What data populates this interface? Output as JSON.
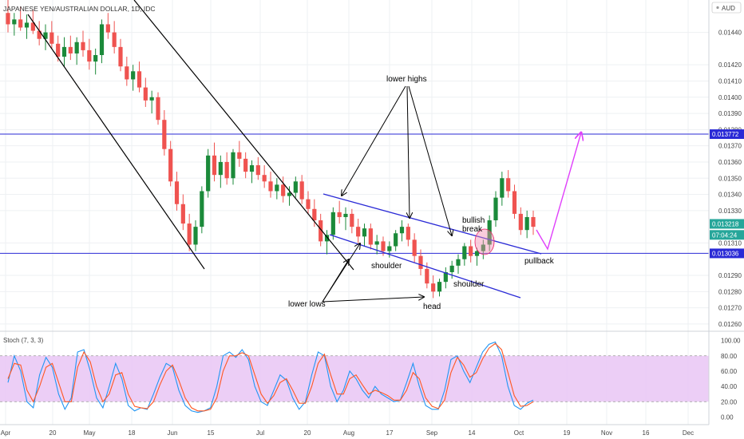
{
  "header": {
    "symbol_title": "JAPANESE YEN/AUSTRALIAN DOLLAR, 1D, IDC",
    "currency_label": "AUD"
  },
  "colors": {
    "up": "#26a69a",
    "up_dark": "#1b8a3a",
    "down": "#ef5350",
    "blue_line": "#2a2ad6",
    "magenta": "#e040fb",
    "stoch_band": "#e9c6f5",
    "stoch_k": "#2196f3",
    "stoch_d": "#ff5722"
  },
  "chart_data": [
    {
      "type": "candlestick",
      "title": "JAPANESE YEN/AUSTRALIAN DOLLAR, 1D, IDC",
      "ylim": [
        0.01257,
        0.0146
      ],
      "y_ticks": [
        "0.01440",
        "0.01420",
        "0.01410",
        "0.01400",
        "0.01390",
        "0.01380",
        "0.01370",
        "0.01360",
        "0.01350",
        "0.01340",
        "0.01330",
        "0.01310",
        "0.01290",
        "0.01280",
        "0.01270",
        "0.01260"
      ],
      "x_ticks": [
        "Apr",
        "20",
        "May",
        "18",
        "Jun",
        "15",
        "Jul",
        "20",
        "Aug",
        "17",
        "Sep",
        "14",
        "Oct",
        "19",
        "Nov",
        "16",
        "Dec"
      ],
      "candles": [
        [
          0.01452,
          0.0146,
          0.0144,
          0.01445
        ],
        [
          0.01445,
          0.01452,
          0.01438,
          0.01448
        ],
        [
          0.01448,
          0.01456,
          0.01441,
          0.01443
        ],
        [
          0.01443,
          0.01451,
          0.01436,
          0.01446
        ],
        [
          0.01446,
          0.01454,
          0.01439,
          0.01441
        ],
        [
          0.01441,
          0.01447,
          0.01432,
          0.01436
        ],
        [
          0.01436,
          0.01445,
          0.01429,
          0.0144
        ],
        [
          0.0144,
          0.01447,
          0.0143,
          0.01433
        ],
        [
          0.01433,
          0.01438,
          0.01422,
          0.01425
        ],
        [
          0.01425,
          0.01437,
          0.01419,
          0.01431
        ],
        [
          0.01431,
          0.01438,
          0.01423,
          0.01427
        ],
        [
          0.01427,
          0.01437,
          0.0142,
          0.01434
        ],
        [
          0.01434,
          0.01441,
          0.01425,
          0.01429
        ],
        [
          0.01429,
          0.01436,
          0.01417,
          0.01422
        ],
        [
          0.01422,
          0.0143,
          0.01414,
          0.01426
        ],
        [
          0.01426,
          0.01448,
          0.01421,
          0.01445
        ],
        [
          0.01445,
          0.01452,
          0.01436,
          0.0144
        ],
        [
          0.0144,
          0.01447,
          0.01427,
          0.01431
        ],
        [
          0.01431,
          0.01436,
          0.01416,
          0.01419
        ],
        [
          0.01419,
          0.01425,
          0.01407,
          0.01411
        ],
        [
          0.01411,
          0.0142,
          0.01404,
          0.01416
        ],
        [
          0.01416,
          0.01422,
          0.01403,
          0.01406
        ],
        [
          0.01406,
          0.01412,
          0.01394,
          0.01398
        ],
        [
          0.01398,
          0.01404,
          0.0139,
          0.014
        ],
        [
          0.014,
          0.01403,
          0.01383,
          0.01386
        ],
        [
          0.01386,
          0.01392,
          0.01364,
          0.01368
        ],
        [
          0.01368,
          0.01373,
          0.01345,
          0.01348
        ],
        [
          0.01348,
          0.01354,
          0.0133,
          0.01334
        ],
        [
          0.01334,
          0.0134,
          0.01318,
          0.01322
        ],
        [
          0.01322,
          0.01328,
          0.01305,
          0.01309
        ],
        [
          0.01309,
          0.01324,
          0.01305,
          0.0132
        ],
        [
          0.0132,
          0.01345,
          0.01316,
          0.01342
        ],
        [
          0.01342,
          0.01368,
          0.01338,
          0.01364
        ],
        [
          0.01364,
          0.01372,
          0.01348,
          0.01352
        ],
        [
          0.01352,
          0.01364,
          0.01344,
          0.0136
        ],
        [
          0.0136,
          0.01366,
          0.01346,
          0.0135
        ],
        [
          0.0135,
          0.01368,
          0.01346,
          0.01366
        ],
        [
          0.01366,
          0.01373,
          0.01357,
          0.01362
        ],
        [
          0.01362,
          0.01366,
          0.0135,
          0.01354
        ],
        [
          0.01354,
          0.01361,
          0.01347,
          0.01358
        ],
        [
          0.01358,
          0.01363,
          0.01349,
          0.01352
        ],
        [
          0.01352,
          0.01358,
          0.01344,
          0.01348
        ],
        [
          0.01348,
          0.01354,
          0.01338,
          0.01342
        ],
        [
          0.01342,
          0.0135,
          0.01337,
          0.01346
        ],
        [
          0.01346,
          0.01351,
          0.01335,
          0.01339
        ],
        [
          0.01339,
          0.01345,
          0.01333,
          0.01341
        ],
        [
          0.01341,
          0.01351,
          0.01338,
          0.01348
        ],
        [
          0.01348,
          0.01352,
          0.01334,
          0.01337
        ],
        [
          0.01337,
          0.01342,
          0.01328,
          0.01331
        ],
        [
          0.01331,
          0.01337,
          0.0132,
          0.01324
        ],
        [
          0.01324,
          0.01328,
          0.01308,
          0.01311
        ],
        [
          0.01311,
          0.01318,
          0.01303,
          0.01315
        ],
        [
          0.01315,
          0.01332,
          0.01312,
          0.01329
        ],
        [
          0.01329,
          0.01336,
          0.01322,
          0.01326
        ],
        [
          0.01326,
          0.01332,
          0.01318,
          0.01328
        ],
        [
          0.01328,
          0.01331,
          0.01316,
          0.0132
        ],
        [
          0.0132,
          0.01325,
          0.0131,
          0.01314
        ],
        [
          0.01314,
          0.01322,
          0.01308,
          0.01319
        ],
        [
          0.01319,
          0.01322,
          0.01306,
          0.01309
        ],
        [
          0.01309,
          0.01315,
          0.01303,
          0.01311
        ],
        [
          0.01311,
          0.01314,
          0.01302,
          0.01305
        ],
        [
          0.01305,
          0.01311,
          0.01301,
          0.01308
        ],
        [
          0.01308,
          0.01318,
          0.01305,
          0.01316
        ],
        [
          0.01316,
          0.01324,
          0.01311,
          0.0132
        ],
        [
          0.0132,
          0.01322,
          0.01308,
          0.01312
        ],
        [
          0.01312,
          0.01316,
          0.01298,
          0.01302
        ],
        [
          0.01302,
          0.01306,
          0.0129,
          0.01294
        ],
        [
          0.01294,
          0.01298,
          0.01282,
          0.01285
        ],
        [
          0.01285,
          0.0129,
          0.01276,
          0.0128
        ],
        [
          0.0128,
          0.01288,
          0.01277,
          0.01286
        ],
        [
          0.01286,
          0.01295,
          0.01282,
          0.01292
        ],
        [
          0.01292,
          0.01299,
          0.01288,
          0.01296
        ],
        [
          0.01296,
          0.01303,
          0.01291,
          0.013
        ],
        [
          0.013,
          0.0131,
          0.01296,
          0.01308
        ],
        [
          0.01308,
          0.01312,
          0.01298,
          0.01302
        ],
        [
          0.01302,
          0.01307,
          0.01296,
          0.01305
        ],
        [
          0.01305,
          0.01312,
          0.013,
          0.01309
        ],
        [
          0.01309,
          0.01327,
          0.01305,
          0.01324
        ],
        [
          0.01324,
          0.01342,
          0.0132,
          0.01338
        ],
        [
          0.01338,
          0.01354,
          0.01333,
          0.0135
        ],
        [
          0.0135,
          0.01355,
          0.01338,
          0.01342
        ],
        [
          0.01342,
          0.01346,
          0.01325,
          0.01328
        ],
        [
          0.01328,
          0.01332,
          0.01315,
          0.01318
        ],
        [
          0.01318,
          0.0133,
          0.01313,
          0.01326
        ],
        [
          0.01326,
          0.0133,
          0.01315,
          0.0132
        ]
      ],
      "horizontal_levels": [
        0.013772,
        0.013036
      ],
      "price_tags": [
        {
          "value": 0.013772,
          "label": "0.013772",
          "color": "#2a2ad6"
        },
        {
          "value": 0.013218,
          "label": "0.013218",
          "color": "#26a69a"
        },
        {
          "value": 0.01315,
          "label": "07:04:24",
          "color": "#26a69a"
        },
        {
          "value": 0.013036,
          "label": "0.013036",
          "color": "#2a2ad6"
        }
      ],
      "annotations": {
        "lower_highs": "lower highs",
        "lower_lows": "lower lows",
        "shoulder_left": "shoulder",
        "shoulder_right": "shoulder",
        "head": "head",
        "bullish_break": [
          "bullish",
          "break"
        ],
        "pullback": "pullback"
      },
      "grid": true
    },
    {
      "type": "line",
      "title": "Stoch (7, 3, 3)",
      "ylim": [
        -10,
        110
      ],
      "y_ticks": [
        "100.00",
        "80.00",
        "60.00",
        "40.00",
        "20.00",
        "0.00"
      ],
      "band": [
        20,
        80
      ],
      "series": [
        {
          "values": [
            45,
            80,
            60,
            20,
            12,
            55,
            78,
            65,
            30,
            10,
            25,
            85,
            88,
            60,
            25,
            12,
            40,
            70,
            50,
            15,
            8,
            12,
            10,
            30,
            52,
            70,
            65,
            35,
            15,
            8,
            6,
            8,
            12,
            40,
            80,
            85,
            78,
            88,
            75,
            40,
            20,
            15,
            35,
            55,
            48,
            25,
            10,
            20,
            55,
            85,
            80,
            40,
            20,
            35,
            60,
            50,
            35,
            25,
            40,
            30,
            25,
            20,
            22,
            45,
            70,
            40,
            15,
            10,
            10,
            35,
            75,
            80,
            60,
            45,
            65,
            85,
            95,
            98,
            80,
            40,
            15,
            10,
            18,
            22
          ]
        },
        {
          "values": [
            50,
            70,
            68,
            35,
            20,
            40,
            65,
            70,
            45,
            20,
            20,
            65,
            85,
            72,
            40,
            20,
            30,
            55,
            58,
            30,
            14,
            12,
            11,
            20,
            42,
            60,
            68,
            48,
            25,
            12,
            8,
            8,
            10,
            25,
            60,
            80,
            80,
            84,
            80,
            55,
            30,
            18,
            28,
            45,
            50,
            35,
            18,
            18,
            40,
            70,
            82,
            55,
            30,
            30,
            50,
            55,
            42,
            30,
            35,
            32,
            28,
            22,
            22,
            35,
            58,
            50,
            25,
            14,
            11,
            22,
            58,
            78,
            68,
            52,
            58,
            76,
            90,
            96,
            88,
            58,
            28,
            14,
            15,
            20
          ]
        }
      ]
    }
  ]
}
